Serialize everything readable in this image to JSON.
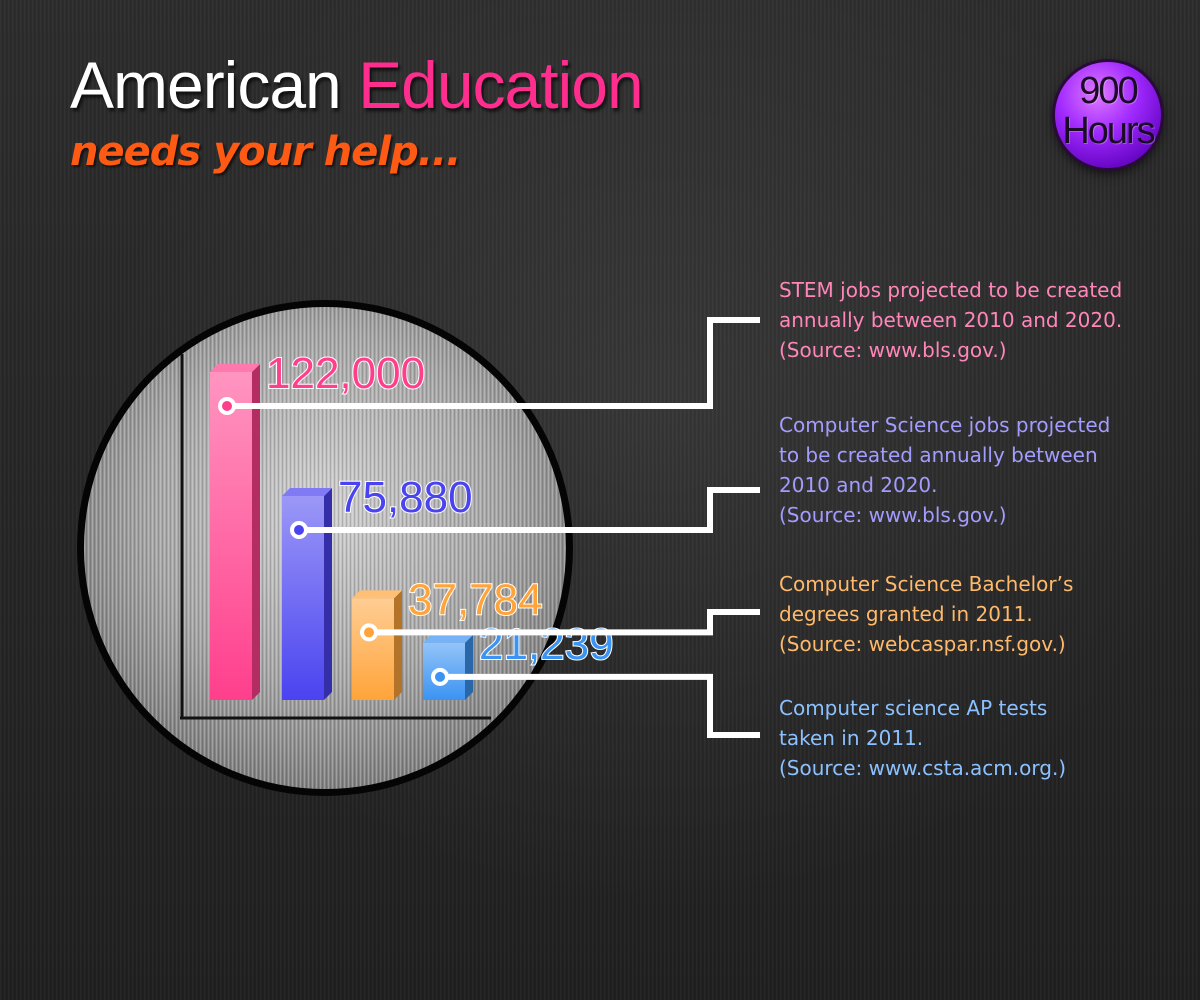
{
  "header": {
    "title_part1": "American",
    "title_part2": "Education",
    "subtitle": "needs your help..."
  },
  "badge": {
    "line1": "900",
    "line2": "Hours"
  },
  "chart_data": {
    "type": "bar",
    "categories": [
      "STEM jobs",
      "Computer Science jobs",
      "Computer Science Bachelor’s degrees",
      "Computer science AP tests"
    ],
    "values": [
      122000,
      75880,
      37784,
      21239
    ],
    "value_labels": [
      "122,000",
      "75,880",
      "37,784",
      "21,239"
    ],
    "colors": [
      "#ff3f8c",
      "#4a43f0",
      "#ffa43a",
      "#3b93f2"
    ],
    "grid": false,
    "legend": "right"
  },
  "descriptions": [
    {
      "lines": [
        "STEM jobs projected to be created",
        "annually between 2010 and 2020.",
        "(Source: www.bls.gov.)"
      ],
      "color": "#ff86b9"
    },
    {
      "lines": [
        "Computer Science jobs projected",
        "to be created annually between",
        "2010 and 2020.",
        "(Source: www.bls.gov.)"
      ],
      "color": "#a39cff"
    },
    {
      "lines": [
        "Computer Science Bachelor’s",
        "degrees granted in 2011.",
        "(Source: webcaspar.nsf.gov.)"
      ],
      "color": "#ffb96a"
    },
    {
      "lines": [
        "Computer science AP tests",
        "taken in 2011.",
        "(Source: www.csta.acm.org.)"
      ],
      "color": "#8cc1ff"
    }
  ]
}
